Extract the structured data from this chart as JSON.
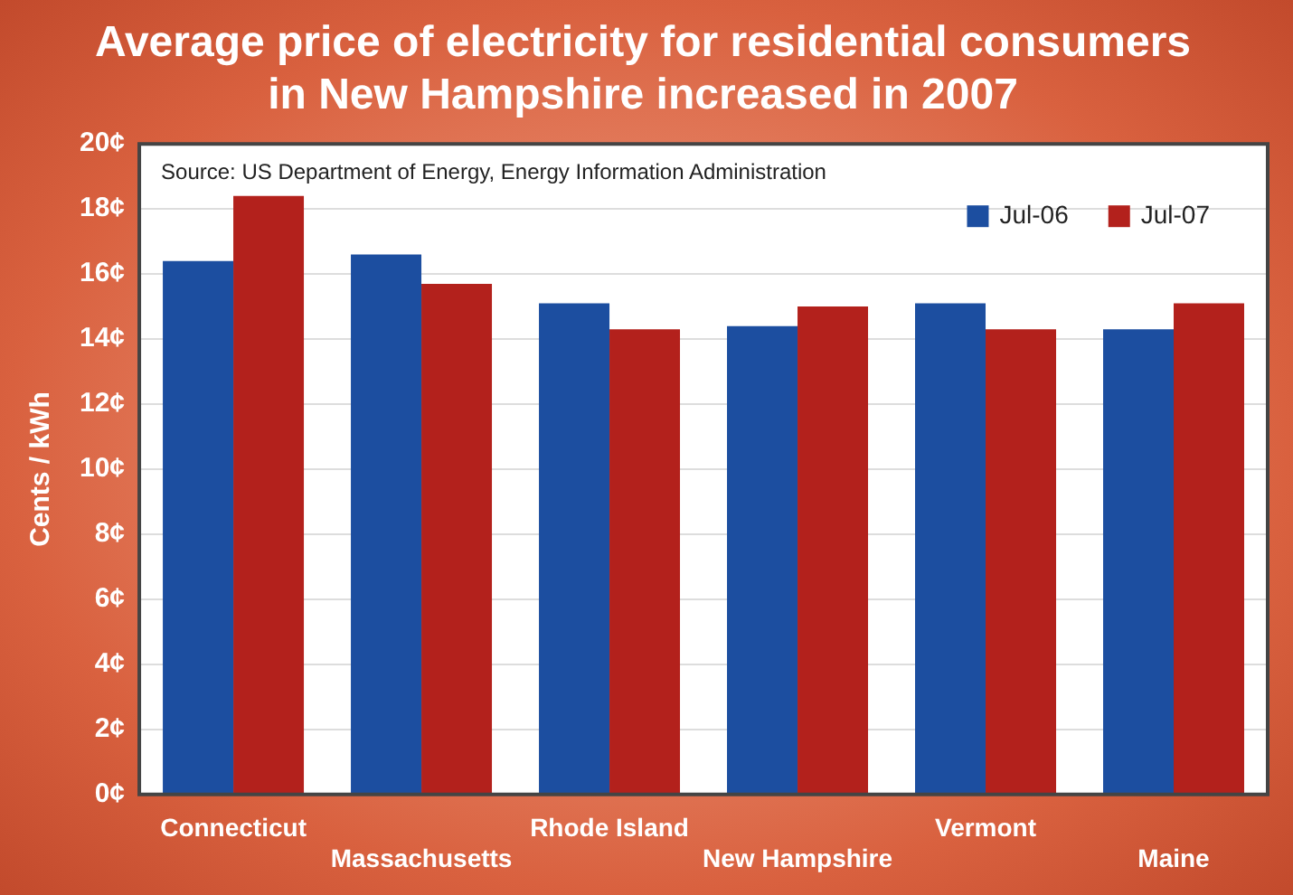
{
  "chart_data": {
    "type": "bar",
    "title": [
      "Average price of electricity for residential consumers",
      "in New Hampshire increased in 2007"
    ],
    "ylabel": "Cents / kWh",
    "categories": [
      "Connecticut",
      "Massachusetts",
      "Rhode Island",
      "New Hampshire",
      "Vermont",
      "Maine"
    ],
    "series": [
      {
        "name": "Jul-06",
        "color": "#1c4ea0",
        "values": [
          16.4,
          16.6,
          15.1,
          14.4,
          15.1,
          14.3
        ]
      },
      {
        "name": "Jul-07",
        "color": "#b3211c",
        "values": [
          18.4,
          15.7,
          14.3,
          15.0,
          14.3,
          15.1
        ]
      }
    ],
    "ylim": [
      0,
      20
    ],
    "yticks": [
      {
        "value": 0,
        "label": "0¢"
      },
      {
        "value": 2,
        "label": "2¢"
      },
      {
        "value": 4,
        "label": "4¢"
      },
      {
        "value": 6,
        "label": "6¢"
      },
      {
        "value": 8,
        "label": "8¢"
      },
      {
        "value": 10,
        "label": "10¢"
      },
      {
        "value": 12,
        "label": "12¢"
      },
      {
        "value": 14,
        "label": "14¢"
      },
      {
        "value": 16,
        "label": "16¢"
      },
      {
        "value": 18,
        "label": "18¢"
      },
      {
        "value": 20,
        "label": "20¢"
      }
    ],
    "grid": "y",
    "legend": "top right",
    "annotations": [
      "Source: US Department of Energy, Energy Information Administration"
    ]
  }
}
